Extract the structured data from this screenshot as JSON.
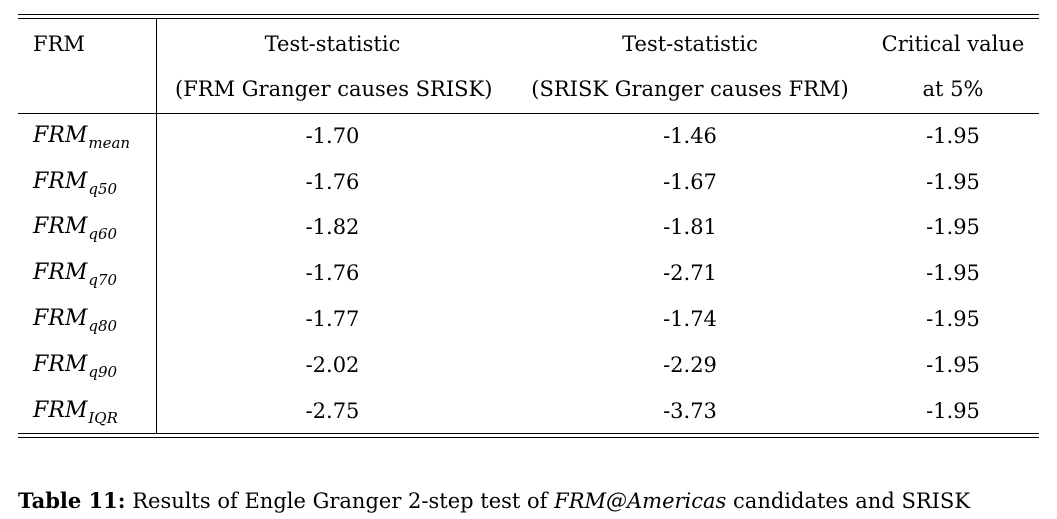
{
  "table": {
    "header": {
      "col0": "FRM",
      "col1_line1": "Test-statistic",
      "col1_line2": "(FRM Granger causes SRISK)",
      "col2_line1": "Test-statistic",
      "col2_line2": "(SRISK Granger causes FRM)",
      "col3_line1": "Critical value",
      "col3_line2": "at 5%"
    },
    "rows": [
      {
        "label_main": "FRM",
        "label_sub": "mean",
        "fgc": "-1.70",
        "sgc": "-1.46",
        "crit": "-1.95"
      },
      {
        "label_main": "FRM",
        "label_sub": "q50",
        "fgc": "-1.76",
        "sgc": "-1.67",
        "crit": "-1.95"
      },
      {
        "label_main": "FRM",
        "label_sub": "q60",
        "fgc": "-1.82",
        "sgc": "-1.81",
        "crit": "-1.95"
      },
      {
        "label_main": "FRM",
        "label_sub": "q70",
        "fgc": "-1.76",
        "sgc": "-2.71",
        "crit": "-1.95"
      },
      {
        "label_main": "FRM",
        "label_sub": "q80",
        "fgc": "-1.77",
        "sgc": "-1.74",
        "crit": "-1.95"
      },
      {
        "label_main": "FRM",
        "label_sub": "q90",
        "fgc": "-2.02",
        "sgc": "-2.29",
        "crit": "-1.95"
      },
      {
        "label_main": "FRM",
        "label_sub": "IQR",
        "fgc": "-2.75",
        "sgc": "-3.73",
        "crit": "-1.95"
      }
    ]
  },
  "caption": {
    "label": "Table 11:",
    "text_before": "Results of Engle Granger 2-step test of",
    "math": "FRM@Americas",
    "text_after": "candidates and SRISK"
  }
}
